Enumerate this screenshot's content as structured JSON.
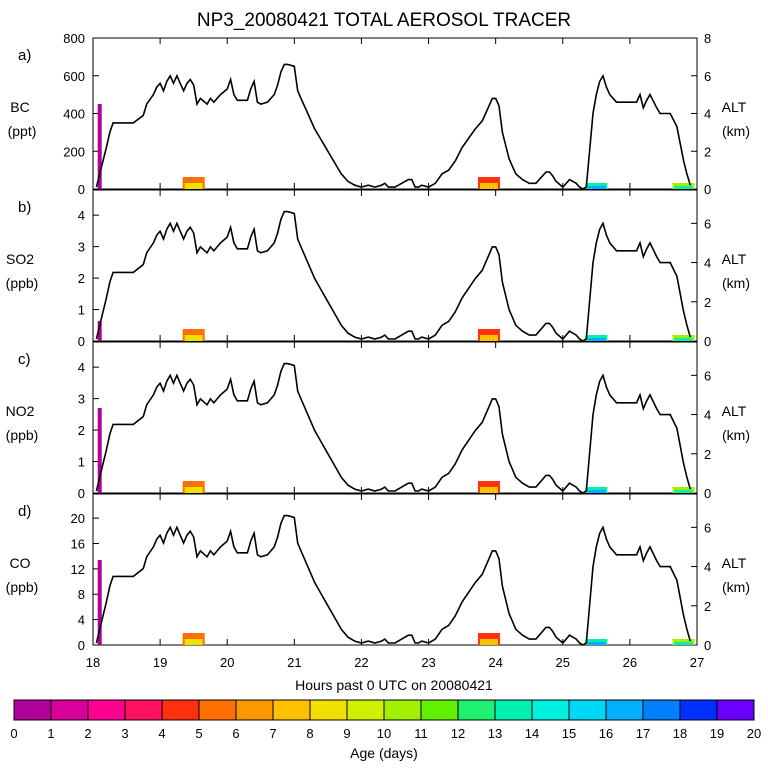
{
  "title": "NP3_20080421 TOTAL AEROSOL TRACER",
  "xlabel": "Hours past 0 UTC on 20080421",
  "x_ticks": [
    "18",
    "19",
    "20",
    "21",
    "22",
    "23",
    "24",
    "25",
    "26",
    "27"
  ],
  "xlim": [
    18,
    27
  ],
  "colorbar": {
    "label": "Age (days)",
    "ticks": [
      "0",
      "1",
      "2",
      "3",
      "4",
      "5",
      "6",
      "7",
      "8",
      "9",
      "10",
      "11",
      "12",
      "13",
      "14",
      "15",
      "16",
      "17",
      "18",
      "19",
      "20"
    ],
    "colors": [
      "#800080",
      "#b0009a",
      "#d8009a",
      "#ff0090",
      "#ff1060",
      "#ff3010",
      "#ff7000",
      "#ff9800",
      "#ffc000",
      "#f0e000",
      "#d0f000",
      "#a0f000",
      "#60f000",
      "#20f070",
      "#00f0b0",
      "#00f0e0",
      "#00d8f8",
      "#00b0ff",
      "#0080ff",
      "#0030ff",
      "#6a00ff"
    ]
  },
  "panels": [
    {
      "letter": "a)",
      "ylabel": [
        "BC",
        "(ppt)"
      ],
      "yticks": [
        "0",
        "200",
        "400",
        "600",
        "800"
      ],
      "ylim": [
        0,
        800
      ],
      "alt_label": [
        "ALT",
        "(km)"
      ],
      "alt_ticks": [
        "0",
        "2",
        "4",
        "6",
        "8"
      ],
      "alt_lim": [
        0,
        8
      ]
    },
    {
      "letter": "b)",
      "ylabel": [
        "SO2",
        "(ppb)"
      ],
      "yticks": [
        "0",
        "1",
        "2",
        "3",
        "4"
      ],
      "ylim": [
        0,
        4.8
      ],
      "alt_label": [
        "ALT",
        "(km)"
      ],
      "alt_ticks": [
        "0",
        "2",
        "4",
        "6"
      ],
      "alt_lim": [
        0,
        7.7
      ]
    },
    {
      "letter": "c)",
      "ylabel": [
        "NO2",
        "(ppb)"
      ],
      "yticks": [
        "0",
        "1",
        "2",
        "3",
        "4"
      ],
      "ylim": [
        0,
        4.8
      ],
      "alt_label": [
        "ALT",
        "(km)"
      ],
      "alt_ticks": [
        "0",
        "2",
        "4",
        "6"
      ],
      "alt_lim": [
        0,
        7.7
      ]
    },
    {
      "letter": "d)",
      "ylabel": [
        "CO",
        "(ppb)"
      ],
      "yticks": [
        "0",
        "4",
        "8",
        "12",
        "16",
        "20"
      ],
      "ylim": [
        0,
        23.8
      ],
      "alt_label": [
        "ALT",
        "(km)"
      ],
      "alt_ticks": [
        "0",
        "2",
        "4",
        "6"
      ],
      "alt_lim": [
        0,
        7.7
      ]
    }
  ],
  "chart_data": {
    "type": "line",
    "title": "NP3_20080421 TOTAL AEROSOL TRACER",
    "xlabel": "Hours past 0 UTC on 20080421",
    "xlim": [
      18,
      27
    ],
    "altitude_km": {
      "x": [
        18.05,
        18.1,
        18.2,
        18.25,
        18.3,
        18.5,
        18.6,
        18.75,
        18.8,
        18.9,
        18.95,
        19.0,
        19.05,
        19.1,
        19.15,
        19.2,
        19.25,
        19.3,
        19.35,
        19.4,
        19.45,
        19.5,
        19.55,
        19.6,
        19.7,
        19.75,
        19.8,
        19.9,
        20.0,
        20.05,
        20.1,
        20.15,
        20.2,
        20.3,
        20.35,
        20.4,
        20.45,
        20.5,
        20.6,
        20.7,
        20.75,
        20.8,
        20.85,
        20.9,
        21.0,
        21.05,
        21.1,
        21.2,
        21.3,
        21.4,
        21.5,
        21.6,
        21.7,
        21.8,
        21.9,
        22.0,
        22.1,
        22.2,
        22.3,
        22.35,
        22.4,
        22.5,
        22.6,
        22.7,
        22.75,
        22.8,
        22.85,
        22.9,
        23.0,
        23.1,
        23.2,
        23.3,
        23.4,
        23.5,
        23.6,
        23.7,
        23.8,
        23.9,
        23.95,
        24.0,
        24.05,
        24.1,
        24.2,
        24.3,
        24.4,
        24.5,
        24.6,
        24.7,
        24.75,
        24.8,
        24.85,
        24.9,
        25.0,
        25.1,
        25.2,
        25.25,
        25.3,
        25.35,
        25.45,
        25.5,
        25.55,
        25.6,
        25.65,
        25.7,
        25.8,
        25.9,
        26.0,
        26.1,
        26.15,
        26.2,
        26.25,
        26.3,
        26.4,
        26.45,
        26.5,
        26.6,
        26.7,
        26.8,
        26.85,
        26.9
      ],
      "y": [
        0.1,
        0.8,
        2.2,
        3.0,
        3.5,
        3.5,
        3.5,
        3.9,
        4.5,
        5.0,
        5.4,
        5.6,
        5.2,
        5.7,
        6.0,
        5.6,
        6.0,
        5.6,
        5.2,
        5.6,
        5.8,
        5.5,
        4.5,
        4.8,
        4.5,
        4.8,
        4.6,
        5.0,
        5.3,
        5.8,
        5.0,
        4.7,
        4.7,
        4.7,
        5.3,
        5.7,
        4.6,
        4.5,
        4.6,
        5.0,
        5.5,
        6.2,
        6.6,
        6.6,
        6.5,
        5.2,
        4.8,
        4.0,
        3.2,
        2.6,
        2.0,
        1.4,
        0.8,
        0.4,
        0.2,
        0.1,
        0.2,
        0.1,
        0.2,
        0.3,
        0.1,
        0.1,
        0.3,
        0.5,
        0.5,
        0.1,
        0.1,
        0.2,
        0.1,
        0.3,
        0.8,
        1.0,
        1.5,
        2.2,
        2.7,
        3.2,
        3.6,
        4.4,
        4.8,
        4.8,
        4.4,
        3.0,
        1.6,
        0.8,
        0.5,
        0.3,
        0.3,
        0.7,
        0.9,
        0.9,
        0.7,
        0.4,
        0.1,
        0.5,
        0.3,
        0.1,
        0.0,
        0.1,
        4.0,
        5.0,
        5.7,
        6.0,
        5.4,
        5.0,
        4.6,
        4.6,
        4.6,
        4.6,
        5.0,
        4.3,
        4.7,
        5.0,
        4.3,
        4.0,
        4.0,
        4.0,
        3.3,
        1.5,
        0.8,
        0.2
      ]
    },
    "color_bursts_age_days": [
      {
        "x": 18.1,
        "age": 1
      },
      {
        "x": 19.5,
        "age": 6
      },
      {
        "x": 23.9,
        "age": 5
      },
      {
        "x": 25.5,
        "age": 14
      },
      {
        "x": 26.8,
        "age": 11
      }
    ]
  }
}
